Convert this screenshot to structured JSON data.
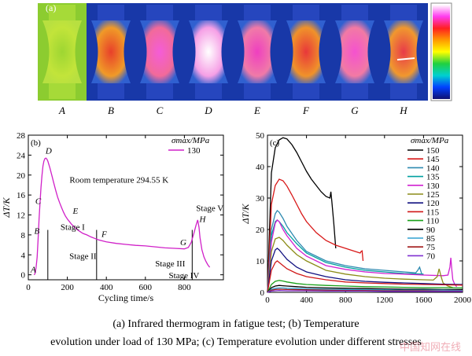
{
  "thermogram": {
    "panel_label": "(a)",
    "labels": [
      "A",
      "B",
      "C",
      "D",
      "E",
      "F",
      "G",
      "H"
    ],
    "core_colors": [
      "#9ed632",
      "#e8402a",
      "#f45cd8",
      "#ffffff",
      "#ef3fc0",
      "#e8383a",
      "#f452cf",
      "#e83a4a"
    ],
    "mid_colors": [
      "#c2e43a",
      "#f09a28",
      "#f26a9a",
      "#f6a0e6",
      "#f07aa8",
      "#f0922a",
      "#f27aa4",
      "#f0982e"
    ],
    "colorbar_colors": [
      "#ffffff",
      "#ff3cf0",
      "#ff2020",
      "#ff9a00",
      "#ffff00",
      "#20d040",
      "#00d0d0",
      "#0040ff",
      "#101070"
    ]
  },
  "caption": {
    "line1": "(a) Infrared thermogram in fatigue test; (b) Temperature",
    "line2": "evolution under load of 130 MPa; (c) Temperature evolution under different stresses"
  },
  "watermark": "中国知网在线",
  "chart_data": [
    {
      "type": "line",
      "panel_label": "(b)",
      "xlabel": "Cycling time/s",
      "ylabel": "ΔT/K",
      "xlim": [
        0,
        1000
      ],
      "ylim": [
        -1,
        28
      ],
      "xticks": [
        0,
        200,
        400,
        600,
        800
      ],
      "yticks": [
        0,
        4,
        8,
        12,
        16,
        20,
        24,
        28
      ],
      "legend_title": "σmax/MPa",
      "legend_position": "top-right",
      "series": [
        {
          "name": "130",
          "color": "#d020c8",
          "x": [
            30,
            35,
            40,
            45,
            50,
            55,
            60,
            65,
            70,
            75,
            80,
            85,
            90,
            95,
            100,
            110,
            120,
            130,
            140,
            150,
            160,
            170,
            180,
            190,
            200,
            220,
            240,
            260,
            280,
            300,
            320,
            340,
            360,
            380,
            400,
            450,
            500,
            550,
            600,
            650,
            700,
            750,
            800,
            820,
            835,
            850,
            860,
            868,
            875,
            880,
            885,
            890,
            895,
            900,
            910,
            920,
            930
          ],
          "y": [
            0,
            0.3,
            1.5,
            3.5,
            7.0,
            11.0,
            14.5,
            17.5,
            20.0,
            21.8,
            22.8,
            23.3,
            23.4,
            23.2,
            22.8,
            21.5,
            20.0,
            18.5,
            17.0,
            15.6,
            14.5,
            13.5,
            12.6,
            11.8,
            11.2,
            10.2,
            9.4,
            8.8,
            8.3,
            8.0,
            7.6,
            7.3,
            7.0,
            6.8,
            6.6,
            6.3,
            6.1,
            5.9,
            5.8,
            5.6,
            5.4,
            5.3,
            5.2,
            5.5,
            6.5,
            8.5,
            10.0,
            11.0,
            9.5,
            7.5,
            6.2,
            5.0,
            4.3,
            3.6,
            2.7,
            2.0,
            1.5
          ]
        }
      ],
      "annotations": [
        {
          "text": "A",
          "x": 12,
          "y": 0.5
        },
        {
          "text": "B",
          "x": 30,
          "y": 8.2
        },
        {
          "text": "C",
          "x": 36,
          "y": 14.2
        },
        {
          "text": "D",
          "x": 88,
          "y": 24.3
        },
        {
          "text": "E",
          "x": 228,
          "y": 12.2
        },
        {
          "text": "F",
          "x": 375,
          "y": 7.6
        },
        {
          "text": "G",
          "x": 778,
          "y": 5.9
        },
        {
          "text": "H",
          "x": 877,
          "y": 10.6
        },
        {
          "text": "Stage I",
          "x": 165,
          "y": 9.0
        },
        {
          "text": "Stage II",
          "x": 210,
          "y": 3.2
        },
        {
          "text": "Stage III",
          "x": 650,
          "y": 1.7
        },
        {
          "text": "Stage IV",
          "x": 720,
          "y": -0.7
        },
        {
          "text": "Stage V",
          "x": 860,
          "y": 12.8
        },
        {
          "text": "Room temperature 294.55 K",
          "x": 465,
          "y": 18.5
        }
      ],
      "stage_lines_x": [
        100,
        350,
        840
      ]
    },
    {
      "type": "line",
      "panel_label": "(c)",
      "xlabel": "Cycling time/s",
      "ylabel": "ΔT/K",
      "xlim": [
        0,
        2000
      ],
      "ylim": [
        0,
        50
      ],
      "xticks": [
        0,
        400,
        800,
        1200,
        1600,
        2000
      ],
      "yticks": [
        0,
        10,
        20,
        30,
        40,
        50
      ],
      "legend_title": "σmax/MPa",
      "legend_position": "top-right",
      "series": [
        {
          "name": "150",
          "color": "#000000",
          "x": [
            0,
            40,
            80,
            120,
            160,
            200,
            250,
            300,
            350,
            400,
            450,
            500,
            550,
            600,
            640,
            650,
            660,
            680,
            700
          ],
          "y": [
            0,
            38,
            46,
            48.5,
            49.2,
            48.8,
            47.0,
            44.5,
            41.5,
            38.5,
            36.0,
            34.0,
            32.0,
            30.5,
            30.0,
            32.0,
            29.0,
            22.0,
            14.0
          ]
        },
        {
          "name": "145",
          "color": "#d81818",
          "x": [
            0,
            40,
            80,
            120,
            160,
            200,
            250,
            300,
            350,
            400,
            500,
            600,
            700,
            800,
            900,
            950,
            960,
            970,
            980
          ],
          "y": [
            0,
            28,
            34,
            36.0,
            35.5,
            33.8,
            31.0,
            28.0,
            25.0,
            22.5,
            19.0,
            16.5,
            15.0,
            14.0,
            13.0,
            12.5,
            13.0,
            13.2,
            10.0
          ]
        },
        {
          "name": "140",
          "color": "#2e8ab0",
          "x": [
            0,
            40,
            80,
            100,
            120,
            160,
            200,
            300,
            400,
            600,
            800,
            1000,
            1200,
            1400,
            1520,
            1540,
            1560,
            1580
          ],
          "y": [
            0,
            20,
            25,
            26.0,
            25.5,
            23.5,
            21.0,
            16.5,
            13.0,
            10.0,
            8.5,
            7.5,
            7.0,
            6.5,
            6.2,
            7.0,
            8.0,
            6.0
          ]
        },
        {
          "name": "135",
          "color": "#00a0a0",
          "x": [
            0,
            40,
            80,
            100,
            120,
            160,
            200,
            300,
            400,
            600,
            800,
            1000,
            1200,
            1400,
            1600
          ],
          "y": [
            0,
            18,
            22.5,
            23.0,
            22.5,
            21.0,
            19.0,
            15.5,
            12.5,
            9.5,
            8.0,
            7.0,
            6.5,
            6.0,
            5.8
          ]
        },
        {
          "name": "130",
          "color": "#d020d0",
          "x": [
            0,
            40,
            80,
            100,
            120,
            160,
            200,
            300,
            400,
            600,
            800,
            1000,
            1200,
            1400,
            1600,
            1800,
            1850,
            1870,
            1880,
            1890,
            1900,
            1920,
            1940
          ],
          "y": [
            0,
            16,
            22,
            23.0,
            22.5,
            20.0,
            18.0,
            14.0,
            11.5,
            8.5,
            7.3,
            6.5,
            6.0,
            5.8,
            5.5,
            5.3,
            5.5,
            8.0,
            11.0,
            7.0,
            4.0,
            2.5,
            1.8
          ]
        },
        {
          "name": "125",
          "color": "#8c8c18",
          "x": [
            0,
            40,
            80,
            120,
            160,
            200,
            300,
            400,
            600,
            800,
            1000,
            1200,
            1400,
            1600,
            1700,
            1740,
            1760,
            1780,
            1800,
            1850,
            1900
          ],
          "y": [
            0,
            13,
            17,
            17.5,
            16.5,
            15.0,
            12.0,
            10.0,
            7.0,
            5.8,
            5.0,
            4.5,
            4.2,
            4.0,
            3.9,
            5.0,
            7.5,
            5.0,
            3.0,
            2.0,
            1.5
          ]
        },
        {
          "name": "120",
          "color": "#101080",
          "x": [
            0,
            40,
            80,
            100,
            120,
            160,
            200,
            300,
            400,
            600,
            800,
            1000,
            1200,
            1400,
            1600,
            1800,
            2000
          ],
          "y": [
            0,
            10,
            13.5,
            14.0,
            13.5,
            12.0,
            10.5,
            8.0,
            6.5,
            5.0,
            4.0,
            3.5,
            3.2,
            3.0,
            2.8,
            2.6,
            2.5
          ]
        },
        {
          "name": "115",
          "color": "#d01818",
          "x": [
            0,
            40,
            80,
            100,
            120,
            160,
            200,
            300,
            400,
            600,
            800,
            1000,
            1200,
            1400,
            1600,
            1800,
            2000
          ],
          "y": [
            0,
            7,
            9.5,
            10.0,
            9.5,
            8.5,
            7.5,
            6.0,
            5.0,
            4.0,
            3.3,
            3.0,
            2.8,
            2.6,
            2.5,
            2.4,
            2.3
          ]
        },
        {
          "name": "110",
          "color": "#18a018",
          "x": [
            0,
            40,
            80,
            120,
            160,
            200,
            300,
            400,
            600,
            800,
            1000,
            1200,
            1400,
            1600,
            1800,
            2000
          ],
          "y": [
            0,
            2.5,
            3.5,
            3.8,
            3.6,
            3.3,
            2.8,
            2.5,
            2.2,
            2.0,
            1.8,
            1.7,
            1.6,
            1.5,
            1.5,
            1.4
          ]
        },
        {
          "name": "90",
          "color": "#000000",
          "x": [
            0,
            40,
            80,
            120,
            160,
            200,
            300,
            400,
            600,
            800,
            1000,
            1200,
            1400,
            1600,
            1800,
            2000
          ],
          "y": [
            0,
            1.5,
            2.0,
            2.2,
            2.1,
            2.0,
            1.8,
            1.6,
            1.4,
            1.3,
            1.2,
            1.1,
            1.0,
            1.0,
            0.9,
            0.9
          ]
        },
        {
          "name": "85",
          "color": "#30a0d0",
          "x": [
            0,
            40,
            80,
            120,
            160,
            200,
            300,
            400,
            600,
            800,
            1000,
            1200,
            1400,
            1600,
            1800,
            2000
          ],
          "y": [
            0,
            1.0,
            1.3,
            1.4,
            1.4,
            1.3,
            1.2,
            1.1,
            1.0,
            0.9,
            0.8,
            0.8,
            0.7,
            0.7,
            0.7,
            0.6
          ]
        },
        {
          "name": "75",
          "color": "#a01818",
          "x": [
            0,
            40,
            80,
            120,
            200,
            400,
            600,
            800,
            1000,
            1200,
            1400,
            1600,
            1800,
            2000
          ],
          "y": [
            0,
            0.7,
            0.9,
            1.0,
            0.9,
            0.8,
            0.7,
            0.6,
            0.6,
            0.5,
            0.5,
            0.5,
            0.4,
            0.4
          ]
        },
        {
          "name": "70",
          "color": "#8030d0",
          "x": [
            0,
            40,
            80,
            120,
            200,
            400,
            600,
            800,
            1000,
            1200,
            1400,
            1600,
            1800,
            2000
          ],
          "y": [
            0,
            0.4,
            0.5,
            0.6,
            0.5,
            0.5,
            0.4,
            0.4,
            0.4,
            0.3,
            0.3,
            0.3,
            0.3,
            0.3
          ]
        }
      ]
    }
  ]
}
